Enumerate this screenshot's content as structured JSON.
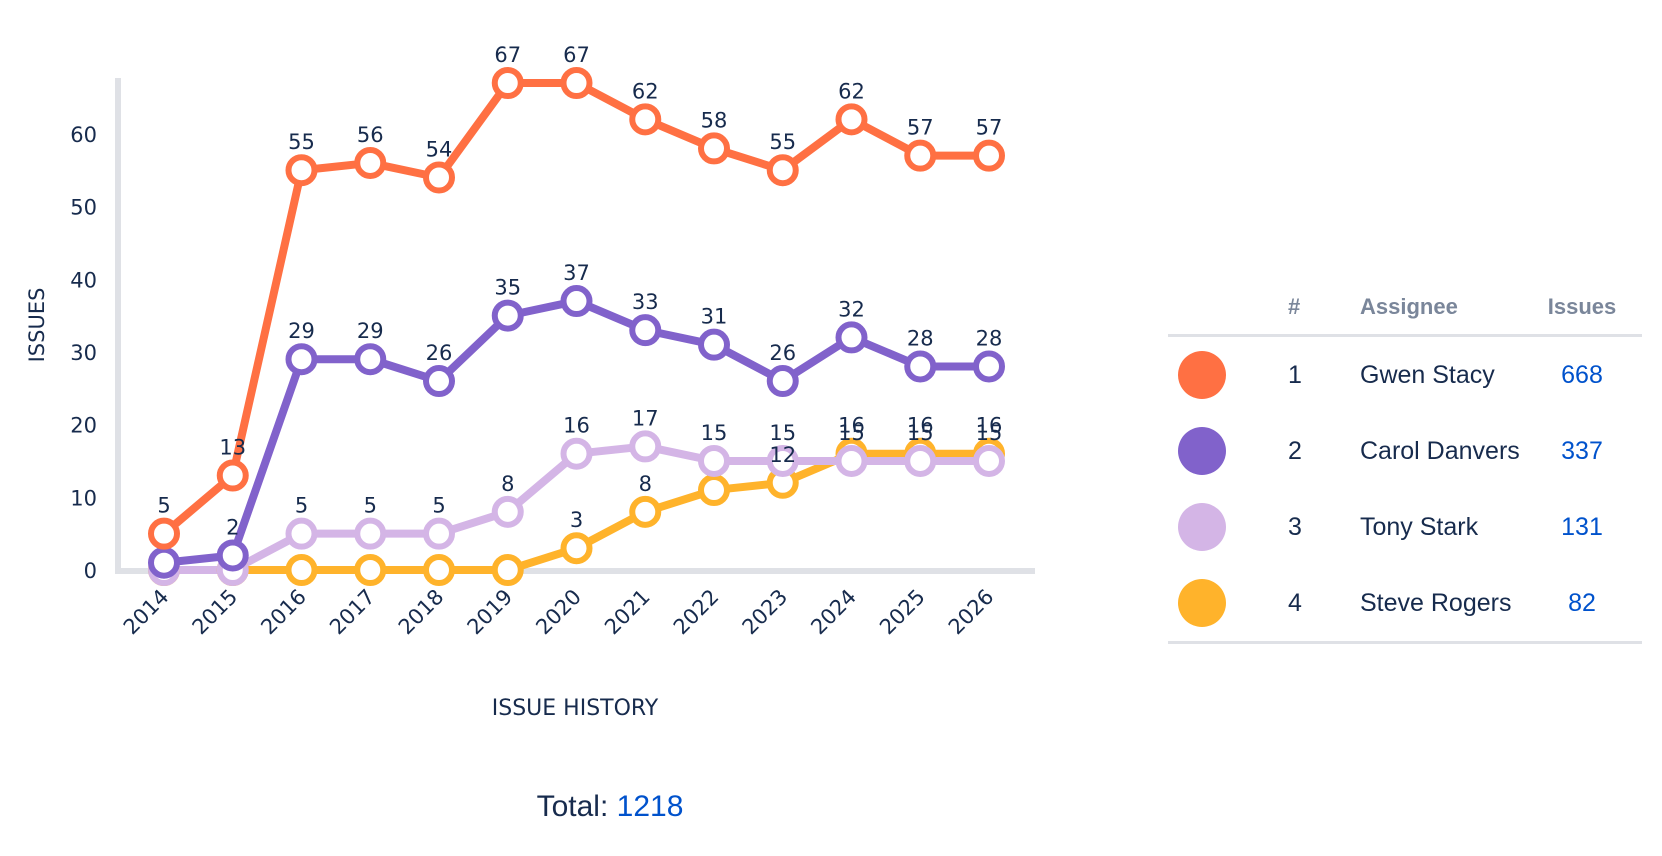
{
  "chart_data": {
    "type": "line",
    "title": "ISSUE HISTORY",
    "ylabel": "ISSUES",
    "xlabel": "",
    "ylim": [
      0,
      67
    ],
    "yticks": [
      0,
      10,
      20,
      30,
      40,
      50,
      60
    ],
    "categories": [
      "2014",
      "2015",
      "2016",
      "2017",
      "2018",
      "2019",
      "2020",
      "2021",
      "2022",
      "2023",
      "2024",
      "2025",
      "2026"
    ],
    "series": [
      {
        "name": "Gwen Stacy",
        "color": "#ff7043",
        "values": [
          5,
          13,
          55,
          56,
          54,
          67,
          67,
          62,
          58,
          55,
          62,
          57,
          57
        ],
        "labels": [
          "5",
          "13",
          "55",
          "56",
          "54",
          "67",
          "67",
          "62",
          "58",
          "55",
          "62",
          "57",
          "57"
        ]
      },
      {
        "name": "Carol Danvers",
        "color": "#8162cb",
        "values": [
          1,
          2,
          29,
          29,
          26,
          35,
          37,
          33,
          31,
          26,
          32,
          28,
          28
        ],
        "labels": [
          "",
          "2",
          "29",
          "29",
          "26",
          "35",
          "37",
          "33",
          "31",
          "26",
          "32",
          "28",
          "28"
        ]
      },
      {
        "name": "Tony Stark",
        "color": "#d4b5e6",
        "values": [
          0,
          0,
          5,
          5,
          5,
          8,
          16,
          17,
          15,
          15,
          15,
          15,
          15
        ],
        "labels": [
          "",
          "",
          "5",
          "5",
          "5",
          "8",
          "16",
          "17",
          "15",
          "15",
          "15",
          "15",
          "15"
        ]
      },
      {
        "name": "Steve Rogers",
        "color": "#ffb32b",
        "values": [
          0,
          0,
          0,
          0,
          0,
          0,
          3,
          8,
          11,
          12,
          16,
          16,
          16
        ],
        "labels": [
          "",
          "",
          "",
          "",
          "",
          "",
          "3",
          "8",
          "",
          "12",
          "16",
          "16",
          "16"
        ]
      }
    ],
    "grid": false,
    "legend": "right"
  },
  "total": {
    "label": "Total:",
    "value": "1218"
  },
  "legend": {
    "headers": {
      "rank": "#",
      "assignee": "Assignee",
      "issues": "Issues"
    },
    "rows": [
      {
        "rank": "1",
        "name": "Gwen Stacy",
        "issues": "668",
        "color": "#ff7043"
      },
      {
        "rank": "2",
        "name": "Carol Danvers",
        "issues": "337",
        "color": "#8162cb"
      },
      {
        "rank": "3",
        "name": "Tony Stark",
        "issues": "131",
        "color": "#d4b5e6"
      },
      {
        "rank": "4",
        "name": "Steve Rogers",
        "issues": "82",
        "color": "#ffb32b"
      }
    ]
  }
}
